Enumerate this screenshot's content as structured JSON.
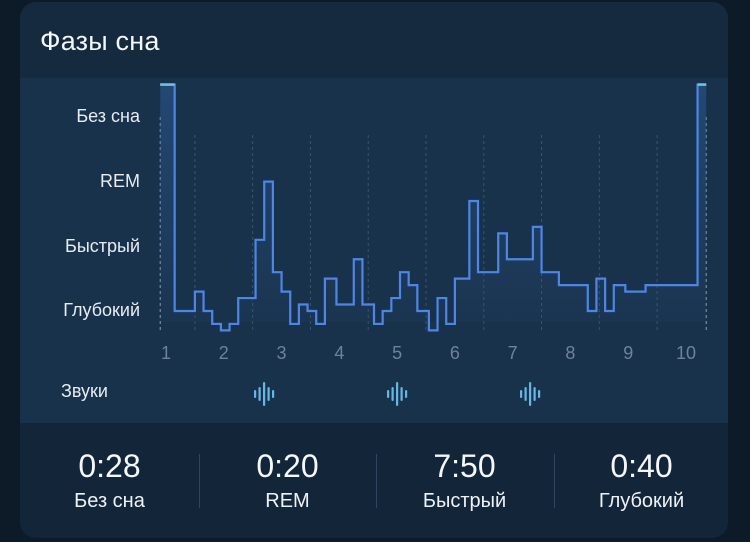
{
  "card": {
    "title": "Фазы сна"
  },
  "chart_data": {
    "type": "line",
    "step": true,
    "xlabel": "",
    "ylabel": "",
    "x_ticks": [
      "1",
      "2",
      "3",
      "4",
      "5",
      "6",
      "7",
      "8",
      "9",
      "10"
    ],
    "xlim": [
      0.9,
      10.4
    ],
    "y_categories": [
      "Глубокий",
      "Быстрый",
      "REM",
      "Без сна"
    ],
    "series": [
      {
        "values": [
          [
            0.9,
            3.5
          ],
          [
            1.15,
            0.0
          ],
          [
            1.5,
            0.3
          ],
          [
            1.65,
            0.0
          ],
          [
            1.8,
            -0.2
          ],
          [
            1.95,
            -0.3
          ],
          [
            2.1,
            -0.2
          ],
          [
            2.25,
            0.2
          ],
          [
            2.55,
            1.1
          ],
          [
            2.7,
            2.0
          ],
          [
            2.85,
            0.6
          ],
          [
            3.0,
            0.3
          ],
          [
            3.15,
            -0.2
          ],
          [
            3.3,
            0.1
          ],
          [
            3.45,
            0.0
          ],
          [
            3.6,
            -0.2
          ],
          [
            3.75,
            0.5
          ],
          [
            3.95,
            0.1
          ],
          [
            4.25,
            0.8
          ],
          [
            4.4,
            0.1
          ],
          [
            4.6,
            -0.2
          ],
          [
            4.75,
            0.0
          ],
          [
            4.9,
            0.2
          ],
          [
            5.05,
            0.6
          ],
          [
            5.2,
            0.4
          ],
          [
            5.35,
            0.0
          ],
          [
            5.55,
            -0.3
          ],
          [
            5.7,
            0.2
          ],
          [
            5.85,
            -0.2
          ],
          [
            6.0,
            0.5
          ],
          [
            6.25,
            1.7
          ],
          [
            6.4,
            0.6
          ],
          [
            6.75,
            1.2
          ],
          [
            6.9,
            0.8
          ],
          [
            7.35,
            1.3
          ],
          [
            7.5,
            0.6
          ],
          [
            7.8,
            0.4
          ],
          [
            8.3,
            0.0
          ],
          [
            8.45,
            0.5
          ],
          [
            8.6,
            0.0
          ],
          [
            8.75,
            0.4
          ],
          [
            8.95,
            0.3
          ],
          [
            9.3,
            0.4
          ],
          [
            10.2,
            3.5
          ],
          [
            10.35,
            3.5
          ]
        ]
      }
    ],
    "grid": {
      "vertical": true,
      "dashed": true
    },
    "legend": "none"
  },
  "sounds": {
    "label": "Звуки",
    "icon": "sound-wave-icon",
    "markers_at_x": [
      2.7,
      5.0,
      7.3
    ]
  },
  "stats": [
    {
      "value": "0:28",
      "label": "Без сна"
    },
    {
      "value": "0:20",
      "label": "REM"
    },
    {
      "value": "7:50",
      "label": "Быстрый"
    },
    {
      "value": "0:40",
      "label": "Глубокий"
    }
  ],
  "colors": {
    "line": "#4d86e6",
    "line_awake": "#6ec3e3",
    "fill_top": "#2b5a93",
    "grid": "#3a526b",
    "tick": "#6f8297",
    "sound_icon": "#65b8e4"
  }
}
